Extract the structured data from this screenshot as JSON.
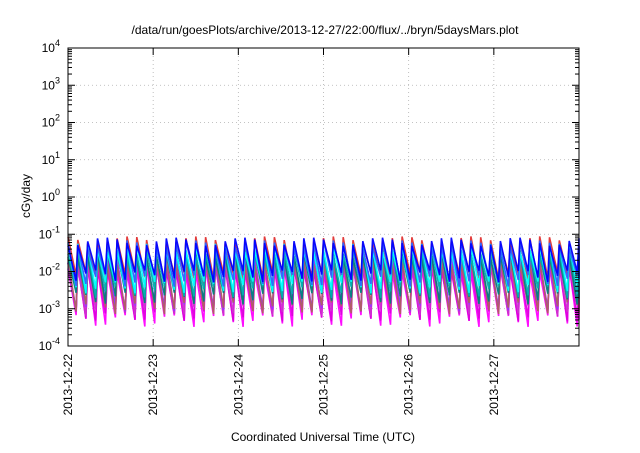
{
  "chart_data": {
    "type": "line",
    "title": "/data/run/goesPlots/archive/2013-12-27/22:00/flux/../bryn/5daysMars.plot",
    "xlabel": "Coordinated Universal Time (UTC)",
    "ylabel": "cGy/day",
    "x_range": [
      "2013-12-22",
      "2013-12-28"
    ],
    "ylim": [
      0.0001,
      10000
    ],
    "yscale": "log",
    "grid": true,
    "x_ticks": [
      "2013-12-22",
      "2013-12-23",
      "2013-12-24",
      "2013-12-25",
      "2013-12-26",
      "2013-12-27"
    ],
    "y_ticks": [
      {
        "value": 0.0001,
        "base": "10",
        "exp": "-4"
      },
      {
        "value": 0.001,
        "base": "10",
        "exp": "-3"
      },
      {
        "value": 0.01,
        "base": "10",
        "exp": "-2"
      },
      {
        "value": 0.1,
        "base": "10",
        "exp": "-1"
      },
      {
        "value": 1,
        "base": "10",
        "exp": "0"
      },
      {
        "value": 10,
        "base": "10",
        "exp": "1"
      },
      {
        "value": 100,
        "base": "10",
        "exp": "2"
      },
      {
        "value": 1000,
        "base": "10",
        "exp": "3"
      },
      {
        "value": 10000,
        "base": "10",
        "exp": "4"
      }
    ],
    "cycles_per_day": 8.6,
    "series": [
      {
        "color": "#ff00ff",
        "peak": 0.012,
        "trough": 0.0005
      },
      {
        "color": "#dd00dd",
        "peak": 0.014,
        "trough": 0.0007
      },
      {
        "color": "#cc33cc",
        "peak": 0.018,
        "trough": 0.001
      },
      {
        "color": "#9933ff",
        "peak": 0.022,
        "trough": 0.0013
      },
      {
        "color": "#b06060",
        "peak": 0.02,
        "trough": 0.0011
      },
      {
        "color": "#e03030",
        "peak": 0.07,
        "trough": 0.007
      },
      {
        "color": "#008080",
        "peak": 0.03,
        "trough": 0.002
      },
      {
        "color": "#00b0b0",
        "peak": 0.035,
        "trough": 0.003
      },
      {
        "color": "#00ffff",
        "peak": 0.045,
        "trough": 0.004
      },
      {
        "color": "#3060ff",
        "peak": 0.055,
        "trough": 0.006
      },
      {
        "color": "#0000ff",
        "peak": 0.065,
        "trough": 0.008
      }
    ]
  }
}
